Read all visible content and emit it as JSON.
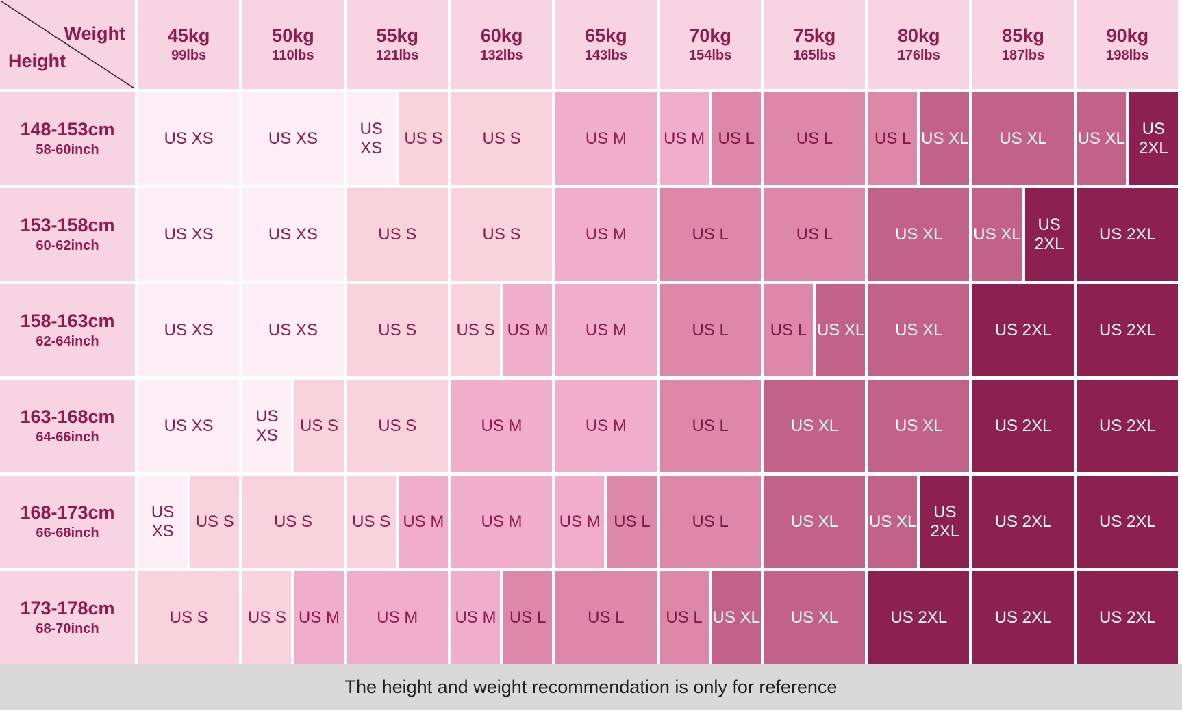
{
  "palette": {
    "header_bg": "#f8d3e2",
    "header_text": "#8e1c4e",
    "diagonal_line": "#3a2430",
    "footer_bg": "#d9d9d9",
    "footer_text": "#1f1f1f",
    "sizes": {
      "XS": {
        "bg": "#fdeff5",
        "text": "#8e1c4e"
      },
      "S": {
        "bg": "#f8d2dd",
        "text": "#8e1c4e"
      },
      "M": {
        "bg": "#f0aeca",
        "text": "#8e1c4e"
      },
      "L": {
        "bg": "#dd87a9",
        "text": "#821945"
      },
      "XL": {
        "bg": "#c36288",
        "text": "#ffffff"
      },
      "2XL": {
        "bg": "#8c2051",
        "text": "#ffffff"
      }
    }
  },
  "corner": {
    "weight_label": "Weight",
    "height_label": "Height"
  },
  "footer": {
    "note": "The height and weight recommendation is only for reference"
  },
  "chart_data": {
    "type": "heatmap",
    "x_header": "Weight",
    "y_header": "Height",
    "columns": [
      {
        "kg": "45kg",
        "lbs": "99lbs"
      },
      {
        "kg": "50kg",
        "lbs": "110lbs"
      },
      {
        "kg": "55kg",
        "lbs": "121lbs"
      },
      {
        "kg": "60kg",
        "lbs": "132lbs"
      },
      {
        "kg": "65kg",
        "lbs": "143lbs"
      },
      {
        "kg": "70kg",
        "lbs": "154lbs"
      },
      {
        "kg": "75kg",
        "lbs": "165lbs"
      },
      {
        "kg": "80kg",
        "lbs": "176lbs"
      },
      {
        "kg": "85kg",
        "lbs": "187lbs"
      },
      {
        "kg": "90kg",
        "lbs": "198lbs"
      }
    ],
    "rows": [
      {
        "cm": "148-153cm",
        "inch": "58-60inch",
        "cells": [
          [
            "US XS"
          ],
          [
            "US XS"
          ],
          [
            "US XS",
            "US S"
          ],
          [
            "US S"
          ],
          [
            "US M"
          ],
          [
            "US M",
            "US L"
          ],
          [
            "US L"
          ],
          [
            "US L",
            "US XL"
          ],
          [
            "US XL"
          ],
          [
            "US XL",
            "US 2XL"
          ]
        ]
      },
      {
        "cm": "153-158cm",
        "inch": "60-62inch",
        "cells": [
          [
            "US XS"
          ],
          [
            "US XS"
          ],
          [
            "US S"
          ],
          [
            "US S"
          ],
          [
            "US M"
          ],
          [
            "US L"
          ],
          [
            "US L"
          ],
          [
            "US XL"
          ],
          [
            "US XL",
            "US 2XL"
          ],
          [
            "US 2XL"
          ]
        ]
      },
      {
        "cm": "158-163cm",
        "inch": "62-64inch",
        "cells": [
          [
            "US XS"
          ],
          [
            "US XS"
          ],
          [
            "US S"
          ],
          [
            "US S",
            "US M"
          ],
          [
            "US M"
          ],
          [
            "US L"
          ],
          [
            "US L",
            "US XL"
          ],
          [
            "US XL"
          ],
          [
            "US 2XL"
          ],
          [
            "US 2XL"
          ]
        ]
      },
      {
        "cm": "163-168cm",
        "inch": "64-66inch",
        "cells": [
          [
            "US XS"
          ],
          [
            "US XS",
            "US S"
          ],
          [
            "US S"
          ],
          [
            "US M"
          ],
          [
            "US M"
          ],
          [
            "US L"
          ],
          [
            "US XL"
          ],
          [
            "US XL"
          ],
          [
            "US 2XL"
          ],
          [
            "US 2XL"
          ]
        ]
      },
      {
        "cm": "168-173cm",
        "inch": "66-68inch",
        "cells": [
          [
            "US XS",
            "US S"
          ],
          [
            "US S"
          ],
          [
            "US S",
            "US M"
          ],
          [
            "US M"
          ],
          [
            "US M",
            "US L"
          ],
          [
            "US L"
          ],
          [
            "US XL"
          ],
          [
            "US XL",
            "US 2XL"
          ],
          [
            "US 2XL"
          ],
          [
            "US 2XL"
          ]
        ]
      },
      {
        "cm": "173-178cm",
        "inch": "68-70inch",
        "cells": [
          [
            "US S"
          ],
          [
            "US S",
            "US M"
          ],
          [
            "US M"
          ],
          [
            "US M",
            "US L"
          ],
          [
            "US L"
          ],
          [
            "US L",
            "US XL"
          ],
          [
            "US XL"
          ],
          [
            "US 2XL"
          ],
          [
            "US 2XL"
          ],
          [
            "US 2XL"
          ]
        ]
      }
    ]
  }
}
